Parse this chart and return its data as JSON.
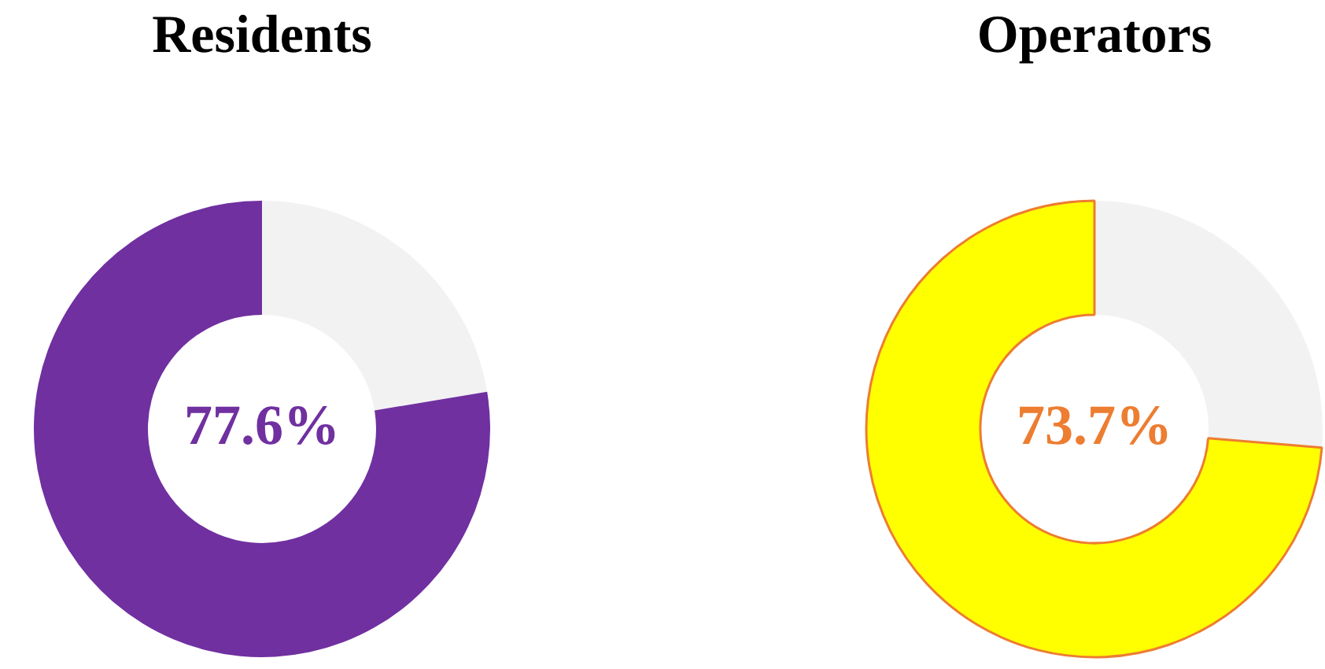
{
  "chart_data": [
    {
      "type": "donut",
      "title": "Residents",
      "categories": [
        null,
        null
      ],
      "values": [
        22.4,
        77.6
      ],
      "colors": [
        "#f2f2f2",
        "#7030a0"
      ],
      "value_labels": [
        null,
        "77.6%"
      ]
    },
    {
      "type": "donut",
      "title": "Operators",
      "categories": [
        null,
        null
      ],
      "values": [
        26.3,
        73.7
      ],
      "colors": [
        "#f2f2f2",
        "#ffff00"
      ],
      "value_labels": [
        null,
        "73.7%"
      ]
    }
  ]
}
